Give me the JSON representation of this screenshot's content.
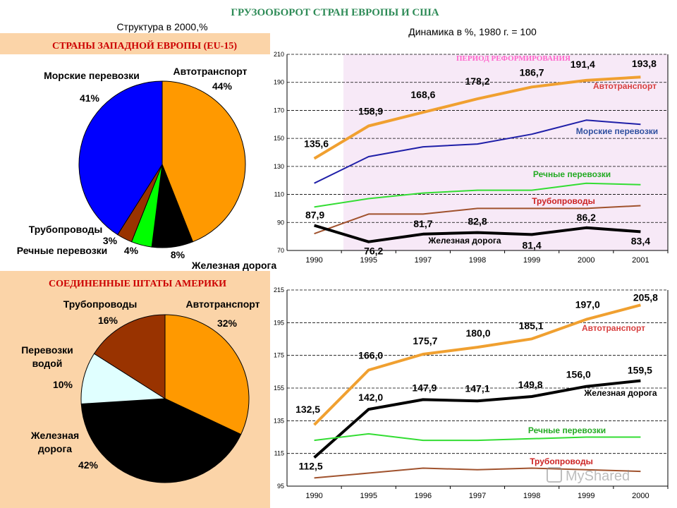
{
  "main_title": "ГРУЗООБОРОТ СТРАН ЕВРОПЫ И США",
  "structure_title": "Структура в 2000,%",
  "dynamics_title": "Динамика в %, 1980 г. = 100",
  "eu_title": "СТРАНЫ ЗАПАДНОЙ ЕВРОПЫ (EU-15)",
  "us_title": "СОЕДИНЕННЫЕ ШТАТЫ АМЕРИКИ",
  "reform_label": "ПЕРИОД   РЕФОРМИРОВАНИЯ",
  "watermark": "MyShared",
  "chart_data": [
    {
      "type": "pie",
      "id": "eu-pie",
      "title": "СТРАНЫ ЗАПАДНОЙ ЕВРОПЫ (EU-15)",
      "slices": [
        {
          "label": "Автотранспорт",
          "value": 44,
          "value_label": "44%",
          "color": "#ff9900"
        },
        {
          "label": "Железная дорога",
          "value": 8,
          "value_label": "8%",
          "color": "#000000"
        },
        {
          "label": "Речные перевозки",
          "value": 4,
          "value_label": "4%",
          "color": "#00ff00"
        },
        {
          "label": "Трубопроводы",
          "value": 3,
          "value_label": "3%",
          "color": "#993300"
        },
        {
          "label": "Морские перевозки",
          "value": 41,
          "value_label": "41%",
          "color": "#0000ff"
        }
      ]
    },
    {
      "type": "pie",
      "id": "us-pie",
      "title": "СОЕДИНЕННЫЕ ШТАТЫ АМЕРИКИ",
      "slices": [
        {
          "label": "Автотранспорт",
          "value": 32,
          "value_label": "32%",
          "color": "#ff9900"
        },
        {
          "label": "Железная дорога",
          "value": 42,
          "value_label": "42%",
          "color": "#000000"
        },
        {
          "label": "Перевозки водой",
          "value": 10,
          "value_label": "10%",
          "color": "#e0ffff"
        },
        {
          "label": "Трубопроводы",
          "value": 16,
          "value_label": "16%",
          "color": "#993300"
        }
      ]
    },
    {
      "type": "line",
      "id": "eu-line",
      "title": "Динамика в %, 1980 г. = 100",
      "categories": [
        "1990",
        "1995",
        "1997",
        "1998",
        "1999",
        "2000",
        "2001"
      ],
      "ylim": [
        70,
        210
      ],
      "yticks": [
        70,
        90,
        110,
        130,
        150,
        170,
        190,
        210
      ],
      "series": [
        {
          "name": "Автотранспорт",
          "color": "#f0a030",
          "width": 4,
          "values": [
            135.6,
            158.9,
            168.6,
            178.2,
            186.7,
            191.4,
            193.8
          ],
          "labels": [
            "135,6",
            "158,9",
            "168,6",
            "178,2",
            "186,7",
            "191,4",
            "193,8"
          ]
        },
        {
          "name": "Морские перевозки",
          "color": "#1f1fa8",
          "width": 2,
          "values": [
            118,
            137,
            144,
            146,
            153,
            163,
            160
          ]
        },
        {
          "name": "Речные перевозки",
          "color": "#33dd33",
          "width": 2,
          "values": [
            101,
            107,
            111,
            113,
            113,
            118,
            117
          ]
        },
        {
          "name": "Трубопроводы",
          "color": "#a0522d",
          "width": 2,
          "values": [
            82,
            96,
            96,
            100,
            100,
            100,
            102
          ]
        },
        {
          "name": "Железная дорога",
          "color": "#000000",
          "width": 4,
          "values": [
            87.9,
            76.2,
            81.7,
            82.8,
            81.4,
            86.2,
            83.4
          ],
          "labels": [
            "87,9",
            "76,2",
            "81,7",
            "82,8",
            "81,4",
            "86,2",
            "83,4"
          ]
        }
      ]
    },
    {
      "type": "line",
      "id": "us-line",
      "categories": [
        "1990",
        "1995",
        "1996",
        "1997",
        "1998",
        "1999",
        "2000"
      ],
      "ylim": [
        95,
        215
      ],
      "yticks": [
        95,
        115,
        135,
        155,
        175,
        195,
        215
      ],
      "series": [
        {
          "name": "Автотранспорт",
          "color": "#f0a030",
          "width": 4,
          "values": [
            132.5,
            166.0,
            175.7,
            180.0,
            185.1,
            197.0,
            205.8
          ],
          "labels": [
            "132,5",
            "166,0",
            "175,7",
            "180,0",
            "185,1",
            "197,0",
            "205,8"
          ]
        },
        {
          "name": "Железная дорога",
          "color": "#000000",
          "width": 4,
          "values": [
            112.5,
            142.0,
            147.9,
            147.1,
            149.8,
            156.0,
            159.5
          ],
          "labels": [
            "112,5",
            "142,0",
            "147,9",
            "147,1",
            "149,8",
            "156,0",
            "159,5"
          ]
        },
        {
          "name": "Речные перевозки",
          "color": "#33dd33",
          "width": 2,
          "values": [
            123,
            127,
            123,
            123,
            124,
            125,
            125
          ]
        },
        {
          "name": "Трубопроводы",
          "color": "#a0522d",
          "width": 2,
          "values": [
            100,
            103,
            106,
            105,
            106,
            105,
            104
          ]
        }
      ]
    }
  ]
}
